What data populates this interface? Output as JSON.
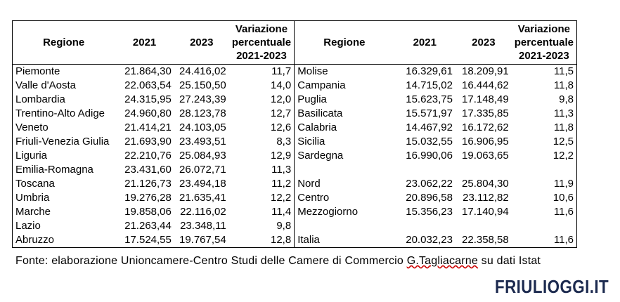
{
  "headers": {
    "region": "Regione",
    "y2021": "2021",
    "y2023": "2023",
    "variation_line1": "Variazione",
    "variation_line2": "percentuale",
    "variation_line3": "2021-2023"
  },
  "left_rows": [
    {
      "region": "Piemonte",
      "v2021": "21.864,30",
      "v2023": "24.416,02",
      "var": "11,7"
    },
    {
      "region": "Valle d'Aosta",
      "v2021": "22.063,54",
      "v2023": "25.150,50",
      "var": "14,0"
    },
    {
      "region": "Lombardia",
      "v2021": "24.315,95",
      "v2023": "27.243,39",
      "var": "12,0"
    },
    {
      "region": "Trentino-Alto Adige",
      "v2021": "24.960,80",
      "v2023": "28.123,78",
      "var": "12,7"
    },
    {
      "region": "Veneto",
      "v2021": "21.414,21",
      "v2023": "24.103,05",
      "var": "12,6"
    },
    {
      "region": "Friuli-Venezia Giulia",
      "v2021": "21.693,90",
      "v2023": "23.493,51",
      "var": "8,3"
    },
    {
      "region": "Liguria",
      "v2021": "22.210,76",
      "v2023": "25.084,93",
      "var": "12,9"
    },
    {
      "region": "Emilia-Romagna",
      "v2021": "23.431,60",
      "v2023": "26.072,71",
      "var": "11,3"
    },
    {
      "region": "Toscana",
      "v2021": "21.126,73",
      "v2023": "23.494,18",
      "var": "11,2"
    },
    {
      "region": "Umbria",
      "v2021": "19.276,28",
      "v2023": "21.635,41",
      "var": "12,2"
    },
    {
      "region": "Marche",
      "v2021": "19.858,06",
      "v2023": "22.116,02",
      "var": "11,4"
    },
    {
      "region": "Lazio",
      "v2021": "21.263,44",
      "v2023": "23.348,11",
      "var": "9,8"
    },
    {
      "region": "Abruzzo",
      "v2021": "17.524,55",
      "v2023": "19.767,54",
      "var": "12,8"
    }
  ],
  "right_rows": [
    {
      "region": "Molise",
      "v2021": "16.329,61",
      "v2023": "18.209,91",
      "var": "11,5"
    },
    {
      "region": "Campania",
      "v2021": "14.715,02",
      "v2023": "16.444,62",
      "var": "11,8"
    },
    {
      "region": "Puglia",
      "v2021": "15.623,75",
      "v2023": "17.148,49",
      "var": "9,8"
    },
    {
      "region": "Basilicata",
      "v2021": "15.571,97",
      "v2023": "17.335,85",
      "var": "11,3"
    },
    {
      "region": "Calabria",
      "v2021": "14.467,92",
      "v2023": "16.172,62",
      "var": "11,8"
    },
    {
      "region": "Sicilia",
      "v2021": "15.032,55",
      "v2023": "16.906,95",
      "var": "12,5"
    },
    {
      "region": "Sardegna",
      "v2021": "16.990,06",
      "v2023": "19.063,65",
      "var": "12,2"
    },
    {
      "region": "",
      "v2021": "",
      "v2023": "",
      "var": ""
    },
    {
      "region": "Nord",
      "v2021": "23.062,22",
      "v2023": "25.804,30",
      "var": "11,9"
    },
    {
      "region": "Centro",
      "v2021": "20.896,58",
      "v2023": "23.112,82",
      "var": "10,6"
    },
    {
      "region": "Mezzogiorno",
      "v2021": "15.356,23",
      "v2023": "17.140,94",
      "var": "11,6"
    },
    {
      "region": "",
      "v2021": "",
      "v2023": "",
      "var": ""
    },
    {
      "region": "Italia",
      "v2021": "20.032,23",
      "v2023": "22.358,58",
      "var": "11,6"
    }
  ],
  "footnote": {
    "before": "Fonte: elaborazione Unioncamere-Centro Studi delle Camere di Commercio ",
    "underlined": "G.Tagliacarne",
    "after": " su dati Istat"
  },
  "logo": "FRIULIOGGI.IT"
}
